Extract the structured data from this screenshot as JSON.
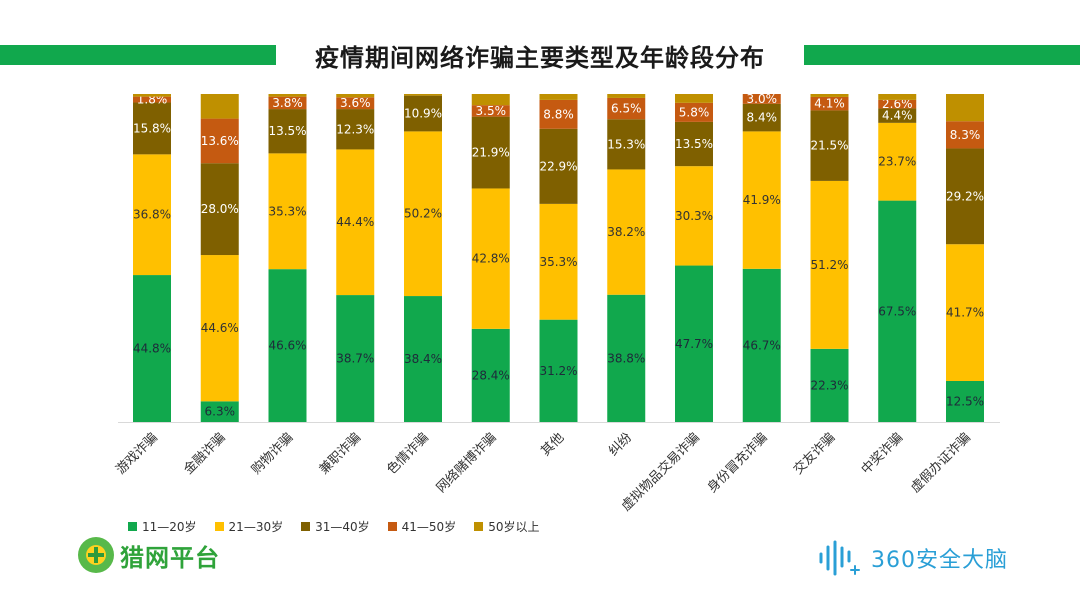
{
  "title": "疫情期间网络诈骗主要类型及年龄段分布",
  "legend": [
    {
      "label": "11—20岁",
      "color": "#11a84d"
    },
    {
      "label": "21—30岁",
      "color": "#ffc000"
    },
    {
      "label": "31—40岁",
      "color": "#7f6000"
    },
    {
      "label": "41—50岁",
      "color": "#c55a11"
    },
    {
      "label": "50岁以上",
      "color": "#bf9000"
    }
  ],
  "logos": {
    "left": "猎网平台",
    "right": "360安全大脑"
  },
  "chart_data": {
    "type": "bar",
    "stacked": true,
    "percent_stacked": true,
    "categories": [
      "游戏诈骗",
      "金融诈骗",
      "购物诈骗",
      "兼职诈骗",
      "色情诈骗",
      "网络赌博诈骗",
      "其他",
      "纠纷",
      "虚拟物品交易诈骗",
      "身份冒充诈骗",
      "交友诈骗",
      "中奖诈骗",
      "虚假办证诈骗"
    ],
    "ylim": [
      0,
      100
    ],
    "series": [
      {
        "name": "11—20岁",
        "color": "#11a84d",
        "values": [
          44.8,
          6.3,
          46.6,
          38.7,
          38.4,
          28.4,
          31.2,
          38.8,
          47.7,
          46.7,
          22.3,
          67.5,
          12.5
        ],
        "labels": [
          "44.8%",
          "6.3%",
          "46.6%",
          "38.7%",
          "38.4%",
          "28.4%",
          "31.2%",
          "38.8%",
          "47.7%",
          "46.7%",
          "22.3%",
          "67.5%",
          "12.5%"
        ]
      },
      {
        "name": "21—30岁",
        "color": "#ffc000",
        "values": [
          36.8,
          44.6,
          35.3,
          44.4,
          50.2,
          42.8,
          35.3,
          38.2,
          30.3,
          41.9,
          51.2,
          23.7,
          41.7
        ],
        "labels": [
          "36.8%",
          "44.6%",
          "35.3%",
          "44.4%",
          "50.2%",
          "42.8%",
          "35.3%",
          "38.2%",
          "30.3%",
          "41.9%",
          "51.2%",
          "23.7%",
          "41.7%"
        ]
      },
      {
        "name": "31—40岁",
        "color": "#7f6000",
        "values": [
          15.8,
          28.0,
          13.5,
          12.3,
          10.9,
          21.9,
          22.9,
          15.3,
          13.5,
          8.4,
          21.5,
          4.4,
          29.2
        ],
        "labels": [
          "15.8%",
          "28.0%",
          "13.5%",
          "12.3%",
          "10.9%",
          "21.9%",
          "22.9%",
          "15.3%",
          "13.5%",
          "8.4%",
          "21.5%",
          "4.4%",
          "29.2%"
        ]
      },
      {
        "name": "41—50岁",
        "color": "#c55a11",
        "values": [
          1.8,
          13.6,
          3.8,
          3.6,
          0.0,
          3.5,
          8.8,
          6.5,
          5.8,
          3.0,
          4.1,
          2.6,
          8.3
        ],
        "labels": [
          "1.8%",
          "13.6%",
          "3.8%",
          "3.6%",
          "",
          "3.5%",
          "8.8%",
          "6.5%",
          "5.8%",
          "3.0%",
          "4.1%",
          "2.6%",
          "8.3%"
        ]
      },
      {
        "name": "50岁以上",
        "color": "#bf9000",
        "values": [
          0.8,
          7.5,
          0.8,
          1.0,
          0.5,
          3.4,
          1.8,
          1.2,
          2.7,
          0.0,
          0.9,
          1.8,
          8.3
        ],
        "labels": [
          "",
          "",
          "",
          "",
          "",
          "",
          "",
          "",
          "",
          "",
          "",
          "",
          ""
        ]
      }
    ]
  }
}
